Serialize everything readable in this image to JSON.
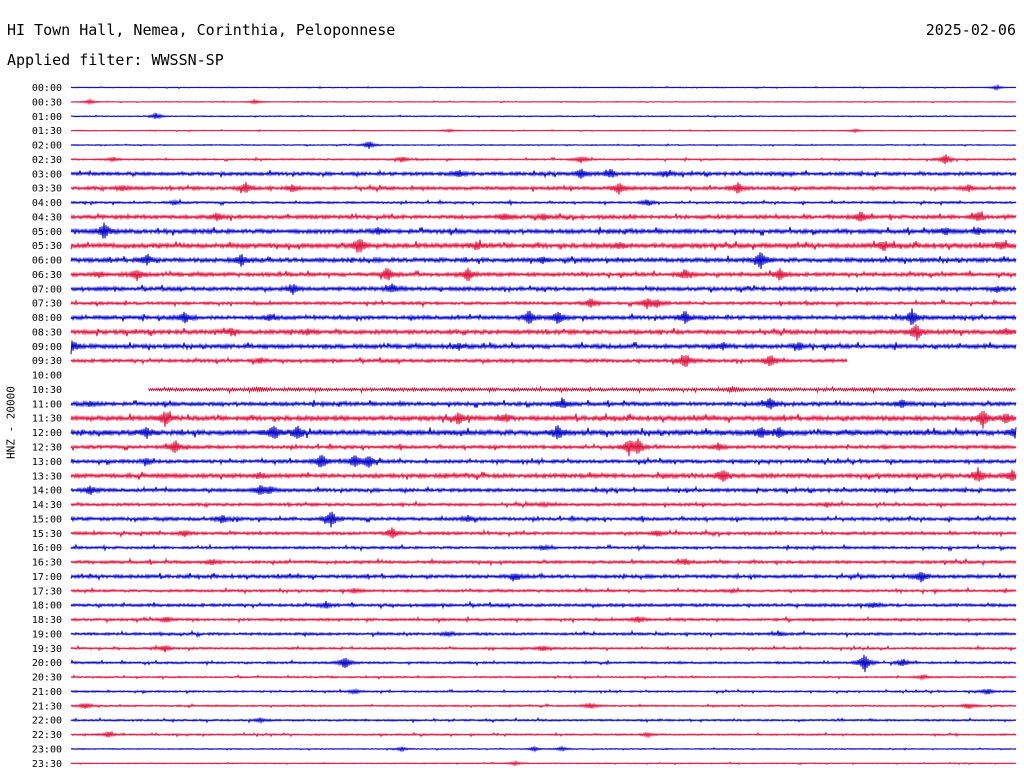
{
  "header": {
    "station": "HI Town Hall, Nemea, Corinthia, Peloponnese",
    "filter": "Applied filter: WWSSN-SP",
    "date": "2025-02-06"
  },
  "y_axis_label": "HNZ - 20000",
  "colors": {
    "even_row": "#0000cc",
    "odd_row": "#e0103c"
  },
  "chart_data": {
    "type": "line",
    "title": "",
    "xlabel": "",
    "ylabel": "HNZ - 20000",
    "row_labels": [
      "00:00",
      "00:30",
      "01:00",
      "01:30",
      "02:00",
      "02:30",
      "03:00",
      "03:30",
      "04:00",
      "04:30",
      "05:00",
      "05:30",
      "06:00",
      "06:30",
      "07:00",
      "07:30",
      "08:00",
      "08:30",
      "09:00",
      "09:30",
      "10:00",
      "10:30",
      "11:00",
      "11:30",
      "12:00",
      "12:30",
      "13:00",
      "13:30",
      "14:00",
      "14:30",
      "15:00",
      "15:30",
      "16:00",
      "16:30",
      "17:00",
      "17:30",
      "18:00",
      "18:30",
      "19:00",
      "19:30",
      "20:00",
      "20:30",
      "21:00",
      "21:30",
      "22:00",
      "22:30",
      "23:00",
      "23:30"
    ],
    "noise_level": [
      0.4,
      0.4,
      0.5,
      0.4,
      0.5,
      0.8,
      1.6,
      1.6,
      1.0,
      1.8,
      2.0,
      2.2,
      2.0,
      1.8,
      1.8,
      1.4,
      1.8,
      2.0,
      2.0,
      1.6,
      0,
      1.4,
      1.8,
      2.2,
      2.4,
      1.6,
      1.6,
      2.0,
      1.6,
      1.4,
      1.6,
      1.4,
      1.2,
      1.4,
      1.6,
      1.2,
      1.4,
      1.2,
      1.2,
      1.0,
      1.0,
      0.8,
      0.8,
      0.8,
      0.9,
      0.8,
      0.5,
      0.5
    ],
    "coverage": [
      [
        [
          0,
          1
        ]
      ],
      [
        [
          0,
          1
        ]
      ],
      [
        [
          0,
          1
        ]
      ],
      [
        [
          0,
          1
        ]
      ],
      [
        [
          0,
          1
        ]
      ],
      [
        [
          0,
          1
        ]
      ],
      [
        [
          0,
          1
        ]
      ],
      [
        [
          0,
          1
        ]
      ],
      [
        [
          0,
          1
        ]
      ],
      [
        [
          0,
          1
        ]
      ],
      [
        [
          0,
          1
        ]
      ],
      [
        [
          0,
          1
        ]
      ],
      [
        [
          0,
          1
        ]
      ],
      [
        [
          0,
          1
        ]
      ],
      [
        [
          0,
          1
        ]
      ],
      [
        [
          0,
          1
        ]
      ],
      [
        [
          0,
          1
        ]
      ],
      [
        [
          0,
          1
        ]
      ],
      [
        [
          0,
          1
        ]
      ],
      [
        [
          0,
          0.822
        ]
      ],
      [],
      [
        [
          0.082,
          1
        ]
      ],
      [
        [
          0,
          1
        ]
      ],
      [
        [
          0,
          1
        ]
      ],
      [
        [
          0,
          1
        ]
      ],
      [
        [
          0,
          1
        ]
      ],
      [
        [
          0,
          1
        ]
      ],
      [
        [
          0,
          1
        ]
      ],
      [
        [
          0,
          1
        ]
      ],
      [
        [
          0,
          1
        ]
      ],
      [
        [
          0,
          1
        ]
      ],
      [
        [
          0,
          1
        ]
      ],
      [
        [
          0,
          1
        ]
      ],
      [
        [
          0,
          1
        ]
      ],
      [
        [
          0,
          1
        ]
      ],
      [
        [
          0,
          1
        ]
      ],
      [
        [
          0,
          1
        ]
      ],
      [
        [
          0,
          1
        ]
      ],
      [
        [
          0,
          1
        ]
      ],
      [
        [
          0,
          1
        ]
      ],
      [
        [
          0,
          1
        ]
      ],
      [
        [
          0,
          1
        ]
      ],
      [
        [
          0,
          1
        ]
      ],
      [
        [
          0,
          1
        ]
      ],
      [
        [
          0,
          1
        ]
      ],
      [
        [
          0,
          1
        ]
      ],
      [
        [
          0,
          1
        ]
      ],
      [
        [
          0,
          1
        ]
      ]
    ],
    "events": [
      [
        [
          0.98,
          2
        ]
      ],
      [
        [
          0.02,
          2
        ],
        [
          0.195,
          2
        ]
      ],
      [
        [
          0.09,
          3
        ]
      ],
      [
        [
          0.4,
          1.5
        ],
        [
          0.83,
          1.5
        ]
      ],
      [
        [
          0.315,
          4
        ]
      ],
      [
        [
          0.925,
          6
        ],
        [
          0.54,
          4
        ],
        [
          0.35,
          3
        ],
        [
          0.045,
          2
        ]
      ],
      [
        [
          0.54,
          5
        ],
        [
          0.41,
          4
        ],
        [
          0.57,
          4
        ],
        [
          0.63,
          3
        ]
      ],
      [
        [
          0.055,
          3
        ],
        [
          0.185,
          6
        ],
        [
          0.58,
          6
        ],
        [
          0.705,
          6
        ],
        [
          0.235,
          4
        ],
        [
          0.95,
          3
        ]
      ],
      [
        [
          0.11,
          2
        ],
        [
          0.61,
          3
        ]
      ],
      [
        [
          0.155,
          4
        ],
        [
          0.46,
          4
        ],
        [
          0.835,
          6
        ],
        [
          0.96,
          5
        ],
        [
          0.5,
          3
        ]
      ],
      [
        [
          0.035,
          8
        ],
        [
          0.325,
          4
        ],
        [
          0.925,
          4
        ],
        [
          0.96,
          3
        ]
      ],
      [
        [
          0.305,
          9
        ],
        [
          0.43,
          4
        ],
        [
          0.86,
          5
        ],
        [
          0.985,
          4
        ],
        [
          0.58,
          3
        ]
      ],
      [
        [
          0.08,
          5
        ],
        [
          0.18,
          7
        ],
        [
          0.73,
          9
        ],
        [
          0.5,
          3
        ]
      ],
      [
        [
          0.07,
          6
        ],
        [
          0.335,
          8
        ],
        [
          0.42,
          7
        ],
        [
          0.65,
          5
        ],
        [
          0.75,
          6
        ],
        [
          0.03,
          3
        ]
      ],
      [
        [
          0.235,
          5
        ],
        [
          0.34,
          5
        ],
        [
          0.98,
          3
        ]
      ],
      [
        [
          0.55,
          6
        ],
        [
          0.61,
          6
        ],
        [
          0.62,
          4
        ]
      ],
      [
        [
          0.12,
          6
        ],
        [
          0.485,
          7
        ],
        [
          0.515,
          7
        ],
        [
          0.65,
          7
        ],
        [
          0.89,
          8
        ],
        [
          0.21,
          3
        ]
      ],
      [
        [
          0.17,
          4
        ],
        [
          0.895,
          9
        ],
        [
          0.25,
          3
        ],
        [
          0.99,
          3
        ]
      ],
      [
        [
          0.0,
          7
        ],
        [
          0.41,
          3
        ],
        [
          0.77,
          4
        ],
        [
          0.69,
          3
        ]
      ],
      [
        [
          0.65,
          8
        ],
        [
          0.74,
          7
        ],
        [
          0.2,
          3
        ]
      ],
      [],
      [
        [
          0.2,
          2
        ],
        [
          0.7,
          2
        ]
      ],
      [
        [
          0.02,
          3
        ],
        [
          0.52,
          6
        ],
        [
          0.74,
          6
        ],
        [
          0.88,
          4
        ]
      ],
      [
        [
          0.1,
          8
        ],
        [
          0.41,
          6
        ],
        [
          0.46,
          4
        ],
        [
          0.965,
          9
        ],
        [
          0.99,
          5
        ]
      ],
      [
        [
          0.08,
          5
        ],
        [
          0.215,
          9
        ],
        [
          0.24,
          6
        ],
        [
          0.515,
          7
        ],
        [
          0.73,
          6
        ],
        [
          0.75,
          5
        ],
        [
          1.0,
          6
        ]
      ],
      [
        [
          0.11,
          7
        ],
        [
          0.59,
          8
        ],
        [
          0.6,
          8
        ],
        [
          0.685,
          4
        ]
      ],
      [
        [
          0.265,
          8
        ],
        [
          0.3,
          7
        ],
        [
          0.315,
          7
        ],
        [
          0.08,
          3
        ]
      ],
      [
        [
          0.69,
          7
        ],
        [
          0.96,
          8
        ],
        [
          0.995,
          6
        ],
        [
          0.2,
          3
        ]
      ],
      [
        [
          0.02,
          5
        ],
        [
          0.2,
          5
        ],
        [
          0.21,
          3
        ]
      ],
      [
        [
          0.5,
          2
        ],
        [
          0.8,
          2
        ]
      ],
      [
        [
          0.16,
          4
        ],
        [
          0.275,
          9
        ],
        [
          0.42,
          3
        ]
      ],
      [
        [
          0.34,
          6
        ],
        [
          0.12,
          3
        ],
        [
          0.62,
          3
        ]
      ],
      [
        [
          0.5,
          2
        ]
      ],
      [
        [
          0.15,
          3
        ],
        [
          0.65,
          3
        ]
      ],
      [
        [
          0.9,
          6
        ],
        [
          0.47,
          3
        ]
      ],
      [
        [
          0.3,
          2
        ],
        [
          0.7,
          2
        ]
      ],
      [
        [
          0.85,
          3
        ],
        [
          0.27,
          3
        ]
      ],
      [
        [
          0.6,
          3
        ],
        [
          0.1,
          3
        ]
      ],
      [
        [
          0.4,
          2
        ],
        [
          0.75,
          2
        ]
      ],
      [
        [
          0.1,
          3
        ],
        [
          0.5,
          3
        ]
      ],
      [
        [
          0.29,
          7
        ],
        [
          0.84,
          9
        ],
        [
          0.88,
          4
        ]
      ],
      [
        [
          0.9,
          2
        ]
      ],
      [
        [
          0.3,
          2
        ],
        [
          0.97,
          3
        ]
      ],
      [
        [
          0.015,
          3
        ],
        [
          0.55,
          3
        ],
        [
          0.95,
          3
        ]
      ],
      [
        [
          0.2,
          2
        ]
      ],
      [
        [
          0.04,
          3
        ],
        [
          0.61,
          2
        ]
      ],
      [
        [
          0.35,
          2
        ],
        [
          0.49,
          2
        ],
        [
          0.52,
          2
        ]
      ],
      [
        [
          0.47,
          2
        ]
      ]
    ]
  }
}
